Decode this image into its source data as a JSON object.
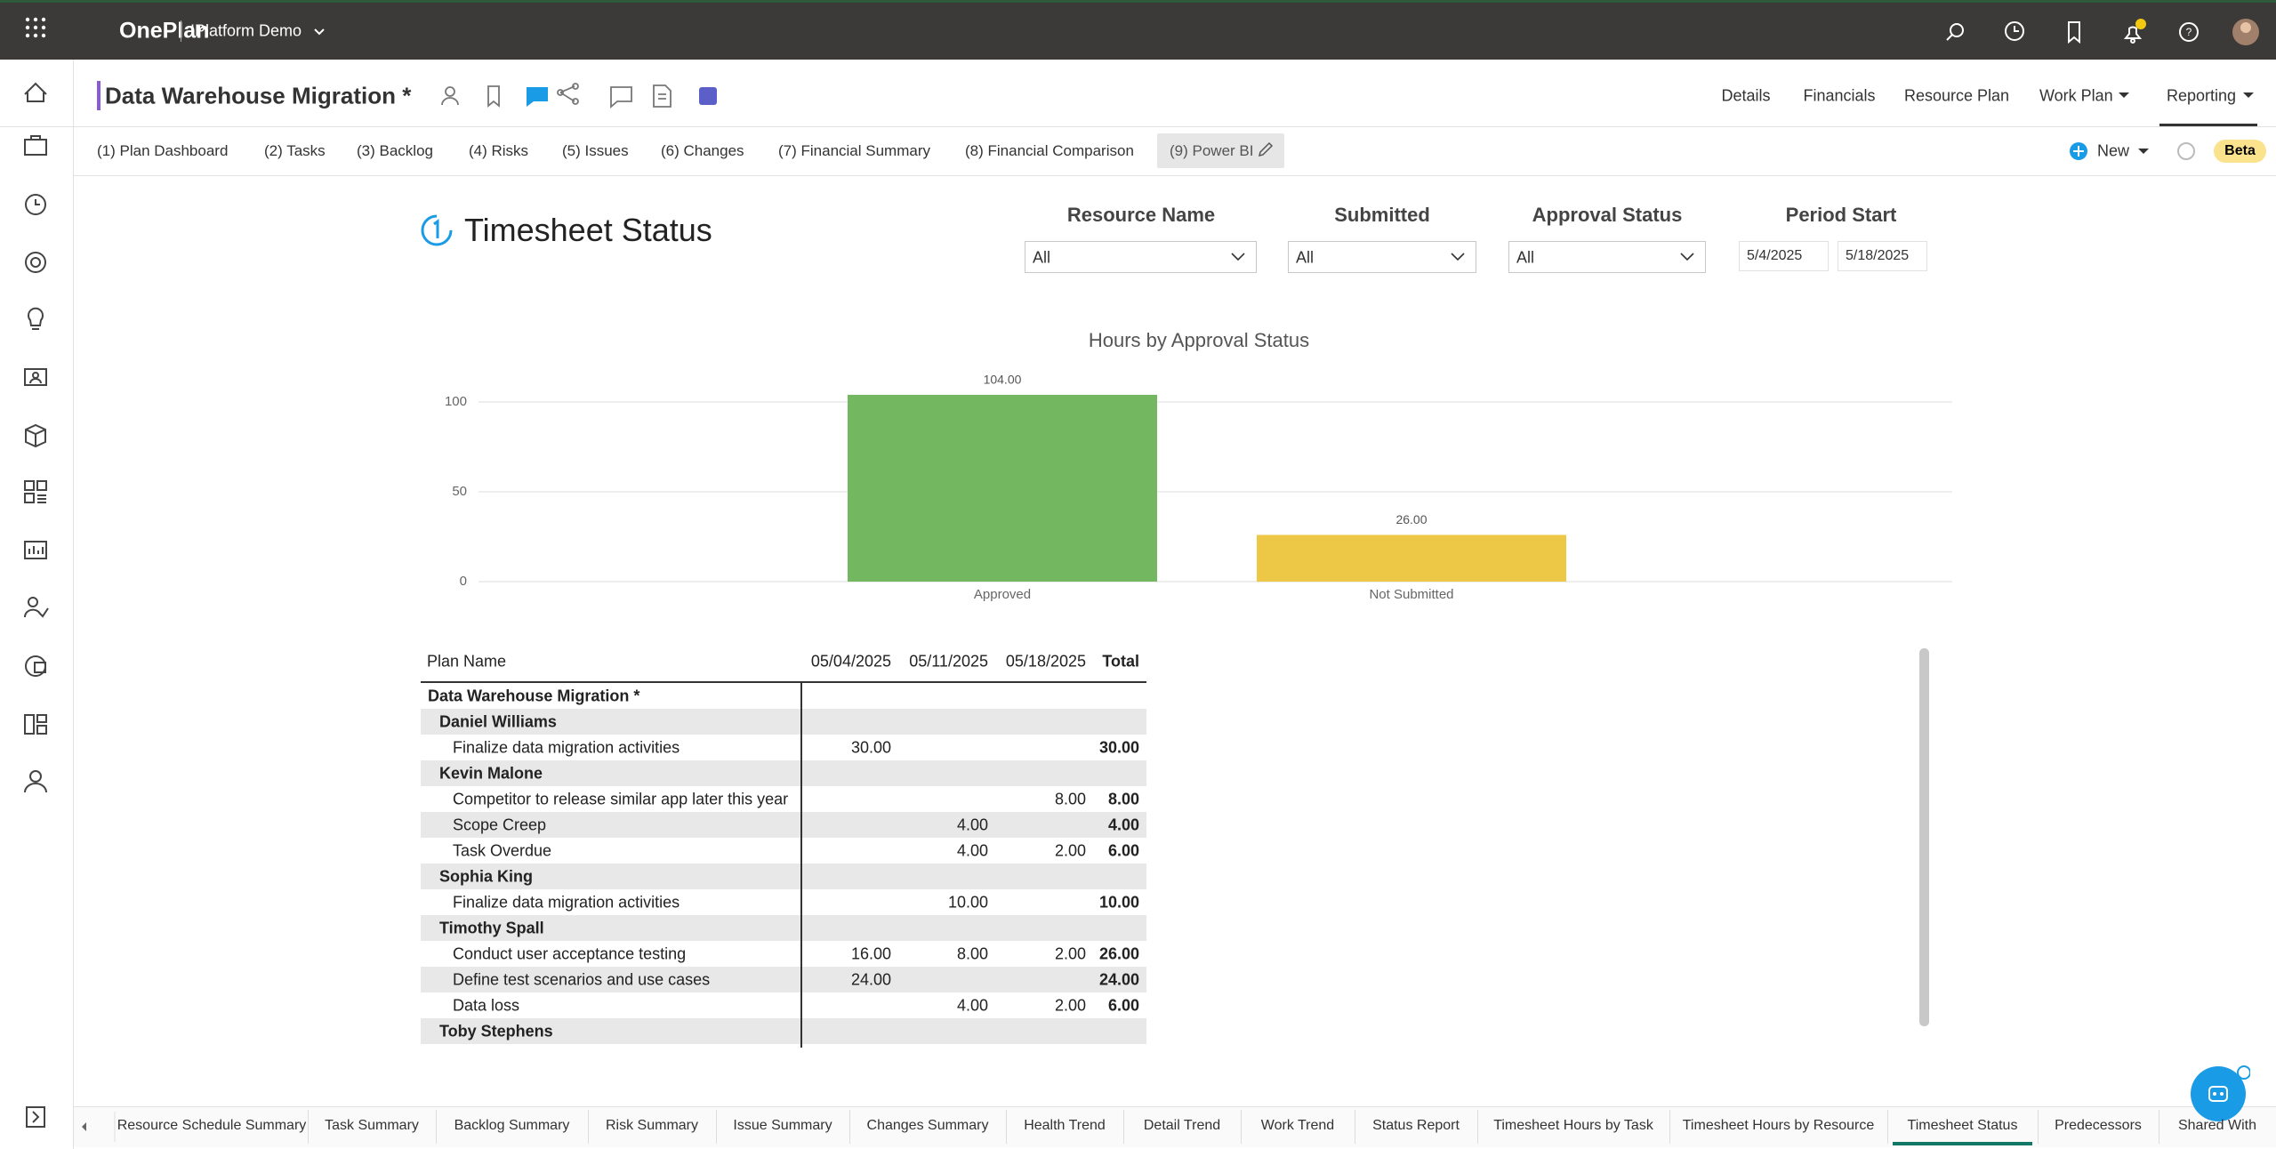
{
  "header": {
    "app": "OnePlan",
    "workspace": "!Platform Demo"
  },
  "project": {
    "title": "Data Warehouse Migration *",
    "nav": [
      "Details",
      "Financials",
      "Resource Plan",
      "Work Plan",
      "Reporting"
    ]
  },
  "tabs": [
    "(1) Plan Dashboard",
    "(2) Tasks",
    "(3) Backlog",
    "(4) Risks",
    "(5) Issues",
    "(6) Changes",
    "(7) Financial Summary",
    "(8) Financial Comparison",
    "(9) Power BI"
  ],
  "actions": {
    "new": "New",
    "beta": "Beta"
  },
  "report": {
    "title": "Timesheet Status",
    "filters": [
      {
        "label": "Resource Name",
        "value": "All"
      },
      {
        "label": "Submitted",
        "value": "All"
      },
      {
        "label": "Approval Status",
        "value": "All"
      }
    ],
    "period": {
      "label": "Period Start",
      "from": "5/4/2025",
      "to": "5/18/2025"
    }
  },
  "chart_data": {
    "type": "bar",
    "title": "Hours by Approval Status",
    "categories": [
      "Approved",
      "Not Submitted"
    ],
    "values": [
      104,
      26
    ],
    "value_labels": [
      "104.00",
      "26.00"
    ],
    "colors": [
      "#73b761",
      "#ecc846"
    ],
    "ylim": [
      0,
      100
    ],
    "yticks": [
      0,
      50,
      100
    ],
    "grid": true
  },
  "table": {
    "columns": [
      "Plan Name",
      "05/04/2025",
      "05/11/2025",
      "05/18/2025",
      "Total"
    ],
    "plan": {
      "name": "Data Warehouse Migration *",
      "people": [
        {
          "name": "Daniel Williams",
          "tasks": [
            {
              "name": "Finalize data migration activities",
              "values": [
                "30.00",
                null,
                null,
                "30.00"
              ]
            }
          ]
        },
        {
          "name": "Kevin Malone",
          "tasks": [
            {
              "name": "Competitor to release similar app later this year",
              "values": [
                null,
                null,
                "8.00",
                "8.00"
              ]
            },
            {
              "name": "Scope Creep",
              "values": [
                null,
                "4.00",
                null,
                "4.00"
              ]
            },
            {
              "name": "Task Overdue",
              "values": [
                null,
                "4.00",
                "2.00",
                "6.00"
              ]
            }
          ]
        },
        {
          "name": "Sophia King",
          "tasks": [
            {
              "name": "Finalize data migration activities",
              "values": [
                null,
                "10.00",
                null,
                "10.00"
              ]
            }
          ]
        },
        {
          "name": "Timothy Spall",
          "tasks": [
            {
              "name": "Conduct user acceptance testing",
              "values": [
                "16.00",
                "8.00",
                "2.00",
                "26.00"
              ]
            },
            {
              "name": "Define test scenarios and use cases",
              "values": [
                "24.00",
                null,
                null,
                "24.00"
              ]
            },
            {
              "name": "Data loss",
              "values": [
                null,
                "4.00",
                "2.00",
                "6.00"
              ]
            }
          ]
        },
        {
          "name": "Toby Stephens",
          "tasks": []
        }
      ]
    }
  },
  "bottom_tabs": [
    "Resource Schedule Summary",
    "Task Summary",
    "Backlog Summary",
    "Risk Summary",
    "Issue Summary",
    "Changes Summary",
    "Health Trend",
    "Detail Trend",
    "Work Trend",
    "Status Report",
    "Timesheet Hours by Task",
    "Timesheet Hours by Resource",
    "Timesheet Status",
    "Predecessors",
    "Shared With"
  ],
  "active_bottom_tab": 12
}
